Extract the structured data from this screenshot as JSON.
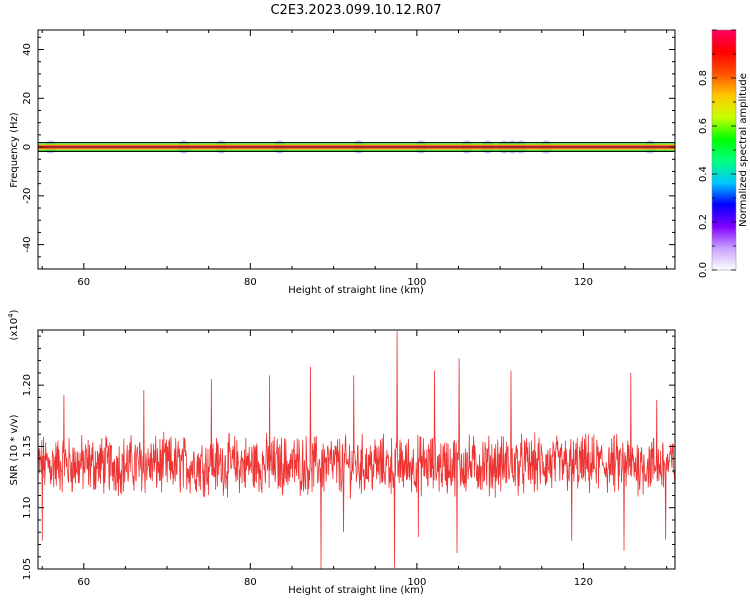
{
  "figure_title": "C2E3.2023.099.10.12.R07",
  "chart_data": [
    {
      "type": "heatmap",
      "title": "",
      "xlabel": "Height of straight line (km)",
      "ylabel": "Frequency (Hz)",
      "xlim": [
        54.5,
        131
      ],
      "ylim": [
        -50,
        48
      ],
      "xticks": [
        60,
        80,
        100,
        120
      ],
      "yticks": [
        -40,
        -20,
        0,
        20,
        40
      ],
      "band_frequency_hz": 0,
      "colorbar": {
        "label": "Normalized spectral amplitude",
        "range": [
          0,
          1
        ],
        "ticks": [
          0.0,
          0.2,
          0.4,
          0.6,
          0.8
        ],
        "colors": [
          "#ffffff",
          "#c8a0ff",
          "#8000ff",
          "#0000ff",
          "#00c8ff",
          "#00ff80",
          "#00ff00",
          "#c8ff00",
          "#ffc800",
          "#ff5000",
          "#ff0000",
          "#ff0060"
        ]
      },
      "blobs_x_km": [
        56,
        72,
        76.5,
        83.5,
        93,
        100.5,
        106,
        108.5,
        110.5,
        111.5,
        112.5,
        115.5,
        128
      ]
    },
    {
      "type": "line",
      "title": "",
      "xlabel": "Height of straight line (km)",
      "ylabel": "SNR (10 * v/v)",
      "y_multiplier": "(x10",
      "y_multiplier_exp": "4",
      "y_multiplier_close": ")",
      "xlim": [
        54.5,
        131
      ],
      "ylim": [
        1.05,
        1.245
      ],
      "xticks": [
        60,
        80,
        100,
        120
      ],
      "yticks": [
        "1.05",
        "1.10",
        "1.15",
        "1.20"
      ],
      "color": "#ee3333",
      "series_summary": {
        "x_start": 54.5,
        "x_end": 131,
        "n_points": 1500,
        "baseline": 1.135,
        "noise_amplitude": 0.02
      },
      "peaks": [
        [
          57.6,
          1.192
        ],
        [
          67.2,
          1.196
        ],
        [
          75.3,
          1.205
        ],
        [
          82.3,
          1.208
        ],
        [
          87.2,
          1.215
        ],
        [
          92.4,
          1.208
        ],
        [
          97.6,
          1.244
        ],
        [
          102.1,
          1.212
        ],
        [
          105.1,
          1.222
        ],
        [
          111.3,
          1.212
        ],
        [
          125.7,
          1.21
        ],
        [
          128.8,
          1.188
        ]
      ],
      "dips": [
        [
          55,
          1.073
        ],
        [
          88.5,
          1.048
        ],
        [
          91.2,
          1.08
        ],
        [
          97.3,
          1.051
        ],
        [
          100.2,
          1.076
        ],
        [
          104.8,
          1.063
        ],
        [
          118.6,
          1.073
        ],
        [
          124.9,
          1.065
        ],
        [
          129.9,
          1.074
        ]
      ]
    }
  ]
}
